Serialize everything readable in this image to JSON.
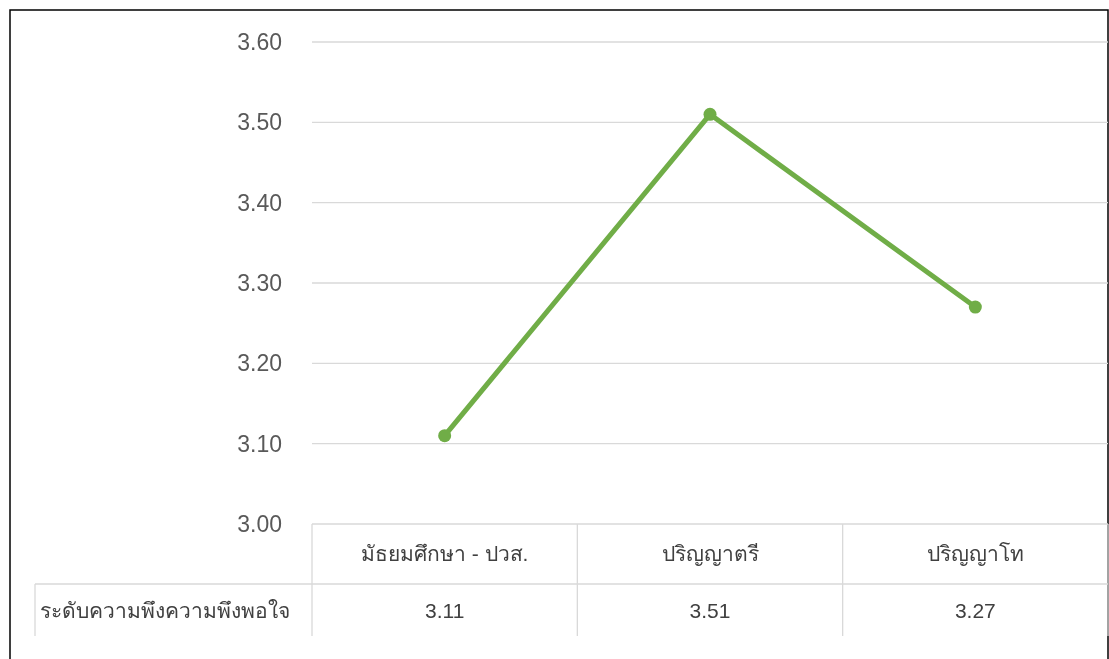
{
  "chart_data": {
    "type": "line",
    "categories": [
      "มัธยมศึกษา - ปวส.",
      "ปริญญาตรี",
      "ปริญญาโท"
    ],
    "series": [
      {
        "name": "ระดับความพึงความพึงพอใจ",
        "color": "#70ad47",
        "values": [
          3.11,
          3.51,
          3.27
        ]
      }
    ],
    "ylim": [
      3.0,
      3.6
    ],
    "yticks": [
      {
        "value": 3.0,
        "label": "3.00"
      },
      {
        "value": 3.1,
        "label": "3.10"
      },
      {
        "value": 3.2,
        "label": "3.20"
      },
      {
        "value": 3.3,
        "label": "3.30"
      },
      {
        "value": 3.4,
        "label": "3.40"
      },
      {
        "value": 3.5,
        "label": "3.50"
      },
      {
        "value": 3.6,
        "label": "3.60"
      }
    ],
    "grid": "y",
    "marker": "circle",
    "line_style": "solid",
    "data_labels": true
  }
}
